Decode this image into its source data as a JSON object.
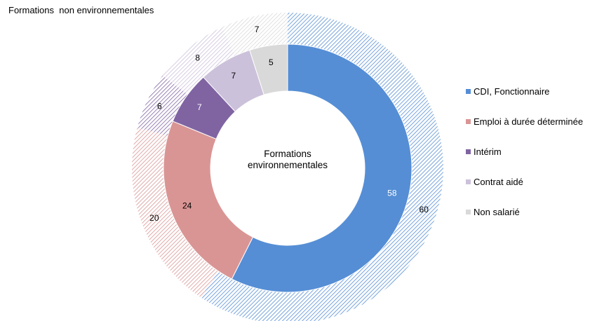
{
  "chart_data": {
    "type": "donut",
    "outer_title": "Formations  non environnementales",
    "center_label": "Formations environnementales",
    "categories": [
      "CDI, Fonctionnaire",
      "Emploi à durée déterminée",
      "Intérim",
      "Contrat aidé",
      "Non salarié"
    ],
    "colors": [
      "#558ED5",
      "#D99594",
      "#8064A2",
      "#CCC1DA",
      "#D9D9D9"
    ],
    "series": [
      {
        "ring": "inner",
        "values": [
          58,
          24,
          7,
          7,
          5
        ],
        "labels": [
          "58",
          "24",
          "7",
          "7",
          "5"
        ]
      },
      {
        "ring": "outer",
        "values": [
          60,
          20,
          6,
          8,
          7
        ],
        "labels": [
          "60",
          "20",
          "6",
          "8",
          "7"
        ]
      }
    ],
    "legend_position": "right"
  }
}
